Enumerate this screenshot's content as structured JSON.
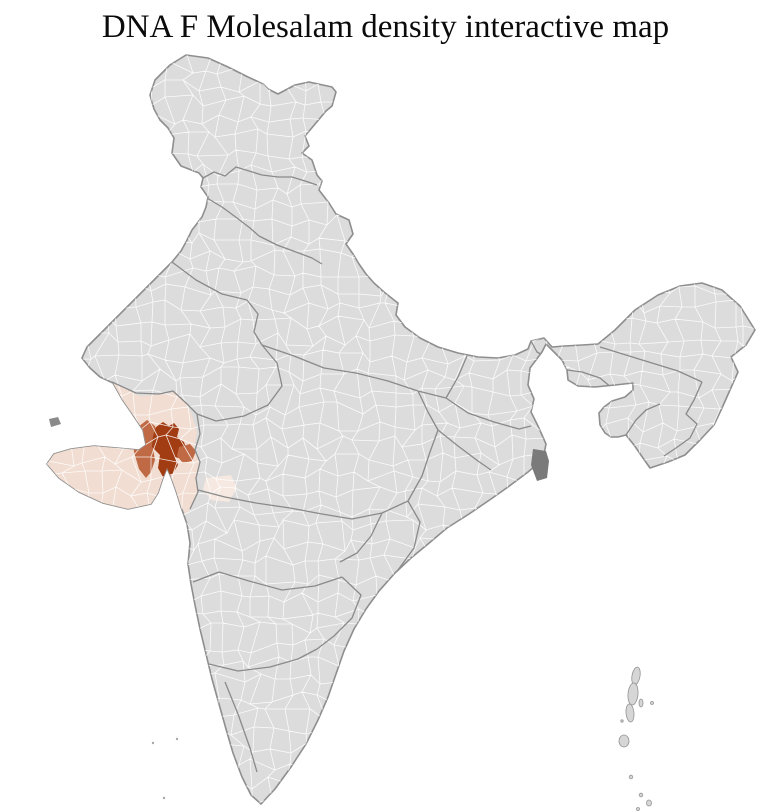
{
  "title": "DNA F Molesalam density interactive map",
  "map": {
    "region_label": "India district-level choropleth",
    "colors": {
      "background": "#ffffff",
      "land": "#dcdcdc",
      "district_line": "#ffffff",
      "state_line": "#8a8a8a",
      "outline": "#8e8e8e",
      "delta_dark": "#7a7a7a",
      "creek_dark": "#8a8a8a",
      "island_fill": "#d6d6d6",
      "island_stroke": "#949494"
    },
    "density_levels": {
      "none": "#dcdcdc",
      "very_low": "#f6e9e1",
      "low": "#f1ddd1",
      "medium": "#bf6a44",
      "high": "#a23c12"
    }
  }
}
